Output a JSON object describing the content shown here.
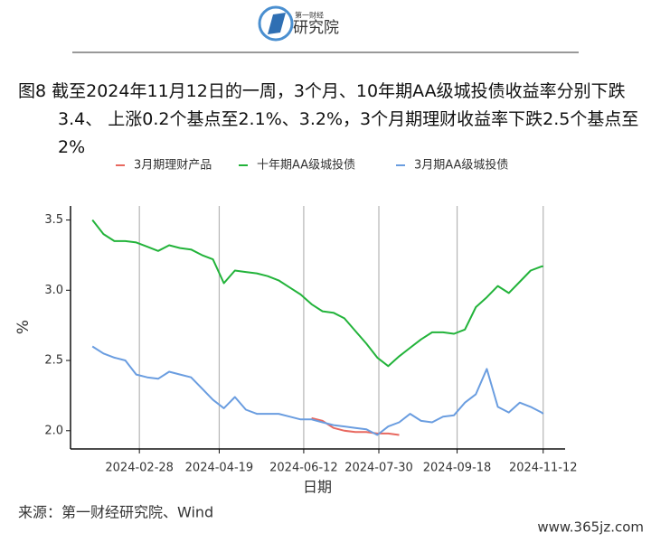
{
  "header": {
    "logo_top": "第一财经",
    "logo_main": "研究院"
  },
  "chart_data": {
    "type": "line",
    "title": "图8  截至2024年11月12日的一周，3个月、10年期AA级城投债收益率分别下跌3.4、 上涨0.2个基点至2.1%、3.2%，3个月期理财收益率下跌2.5个基点至2%",
    "x_label": "日期",
    "y_label": "%",
    "legend": "top",
    "grid": "x",
    "x": [
      "2024-01-29",
      "2024-02-05",
      "2024-02-12",
      "2024-02-19",
      "2024-02-26",
      "2024-03-04",
      "2024-03-11",
      "2024-03-18",
      "2024-03-25",
      "2024-04-01",
      "2024-04-08",
      "2024-04-15",
      "2024-04-22",
      "2024-04-29",
      "2024-05-06",
      "2024-05-13",
      "2024-05-20",
      "2024-05-27",
      "2024-06-03",
      "2024-06-10",
      "2024-06-17",
      "2024-06-24",
      "2024-07-01",
      "2024-07-08",
      "2024-07-15",
      "2024-07-22",
      "2024-07-29",
      "2024-08-05",
      "2024-08-12",
      "2024-08-19",
      "2024-08-26",
      "2024-09-02",
      "2024-09-09",
      "2024-09-16",
      "2024-09-23",
      "2024-09-30",
      "2024-10-07",
      "2024-10-14",
      "2024-10-21",
      "2024-10-28",
      "2024-11-04",
      "2024-11-11",
      "2024-11-12"
    ],
    "xlim": [
      "2024-01-15",
      "2024-11-26"
    ],
    "xticks": [
      "2024-02-28",
      "2024-04-19",
      "2024-06-12",
      "2024-07-30",
      "2024-09-18",
      "2024-11-12"
    ],
    "ylim": [
      1.87,
      3.6
    ],
    "yticks": [
      {
        "value": 2,
        "label": "2.0"
      },
      {
        "value": 2.5,
        "label": "2.5"
      },
      {
        "value": 3,
        "label": "3.0"
      },
      {
        "value": 3.5,
        "label": "3.5"
      }
    ],
    "series": [
      {
        "name": "3月期理财产品",
        "color": "#e8685f",
        "values": [
          null,
          null,
          null,
          null,
          null,
          null,
          null,
          null,
          null,
          null,
          null,
          null,
          null,
          null,
          null,
          null,
          null,
          null,
          null,
          null,
          2.09,
          2.07,
          2.02,
          2.0,
          1.99,
          1.99,
          1.98,
          1.98,
          1.97,
          null,
          null,
          null,
          null,
          null,
          null,
          null,
          null,
          null,
          null,
          null,
          null,
          null,
          null
        ]
      },
      {
        "name": "十年期AA级城投债",
        "color": "#22b33a",
        "values": [
          3.5,
          3.4,
          3.35,
          3.35,
          3.34,
          3.31,
          3.28,
          3.32,
          3.3,
          3.29,
          3.25,
          3.22,
          3.05,
          3.14,
          3.13,
          3.12,
          3.1,
          3.07,
          3.02,
          2.97,
          2.9,
          2.85,
          2.84,
          2.8,
          2.71,
          2.62,
          2.52,
          2.46,
          2.53,
          2.59,
          2.65,
          2.7,
          2.7,
          2.69,
          2.72,
          2.88,
          2.95,
          3.03,
          2.98,
          3.06,
          3.14,
          3.17,
          3.17
        ]
      },
      {
        "name": "3月期AA级城投债",
        "color": "#6a9de0",
        "values": [
          2.6,
          2.55,
          2.52,
          2.5,
          2.4,
          2.38,
          2.37,
          2.42,
          2.4,
          2.38,
          2.3,
          2.22,
          2.16,
          2.24,
          2.15,
          2.12,
          2.12,
          2.12,
          2.1,
          2.08,
          2.08,
          2.06,
          2.04,
          2.03,
          2.02,
          2.01,
          1.97,
          2.03,
          2.06,
          2.12,
          2.07,
          2.06,
          2.1,
          2.11,
          2.2,
          2.26,
          2.44,
          2.17,
          2.13,
          2.2,
          2.17,
          2.13,
          2.12
        ]
      }
    ]
  },
  "source": "来源：第一财经研究院、Wind",
  "watermark": "www.365jz.com"
}
